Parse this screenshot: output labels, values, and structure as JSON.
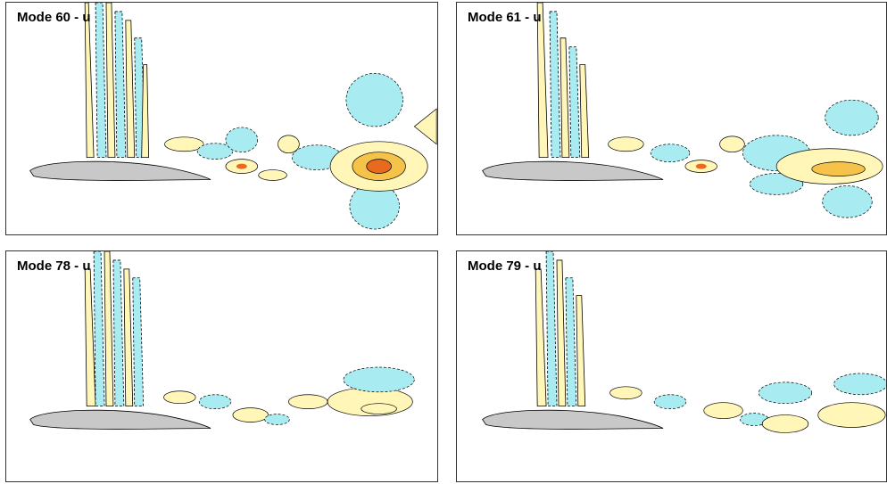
{
  "panels": [
    {
      "title": "Mode 60 - u"
    },
    {
      "title": "Mode 61 - u"
    },
    {
      "title": "Mode 78 - u"
    },
    {
      "title": "Mode 79 - u"
    }
  ],
  "colors": {
    "negative_fill": "#a8ecf2",
    "positive_fill": "#fff6b8",
    "positive_strong": "#f5c24a",
    "peak": "#e86a1f",
    "airfoil": "#c8c8c8",
    "contour_line": "#000000"
  }
}
